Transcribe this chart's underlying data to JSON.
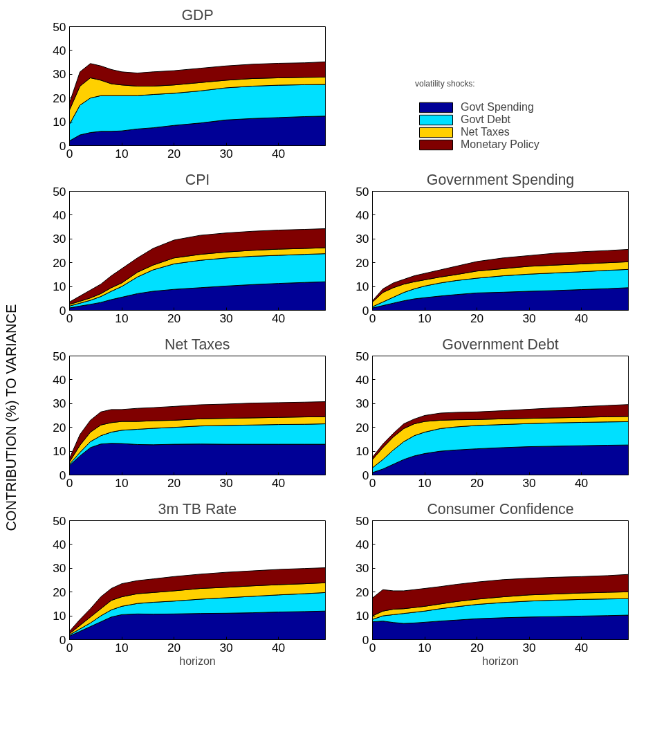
{
  "chart_data": [
    {
      "type": "area",
      "stacked": true,
      "title": "GDP",
      "legend": "right",
      "legend_title": "volatility shocks:",
      "x": [
        0,
        2,
        4,
        6,
        8,
        10,
        13,
        16,
        20,
        25,
        30,
        35,
        40,
        45,
        49
      ],
      "xlim": [
        0,
        49
      ],
      "xticks": [
        0,
        10,
        20,
        30,
        40
      ],
      "ylim": [
        0,
        50
      ],
      "yticks": [
        0,
        10,
        20,
        30,
        40,
        50
      ],
      "series": [
        {
          "name": "Govt Spending",
          "color": "#000096",
          "values": [
            2,
            4.5,
            5.5,
            6,
            6,
            6.2,
            7,
            7.5,
            8.5,
            9.5,
            10.8,
            11.4,
            11.8,
            12.2,
            12.4
          ]
        },
        {
          "name": "Govt Debt",
          "color": "#00e0ff",
          "values": [
            7,
            12.5,
            14.5,
            15,
            15,
            14.8,
            14,
            14,
            13.5,
            13.5,
            13.5,
            13.6,
            13.6,
            13.4,
            13.3
          ]
        },
        {
          "name": "Net Taxes",
          "color": "#ffd000",
          "values": [
            6,
            8,
            8.5,
            6.5,
            5,
            4.5,
            4,
            3.5,
            3.5,
            3.5,
            3.2,
            3.2,
            3.1,
            3.1,
            3.1
          ]
        },
        {
          "name": "Monetary Policy",
          "color": "#800000",
          "values": [
            3,
            6,
            6,
            6,
            6,
            5.5,
            5.5,
            6,
            6,
            6,
            6,
            6,
            6.1,
            6.1,
            6.4
          ]
        }
      ]
    },
    {
      "type": "area",
      "stacked": true,
      "title": "CPI",
      "x": [
        0,
        2,
        4,
        6,
        8,
        10,
        13,
        16,
        20,
        25,
        30,
        35,
        40,
        45,
        49
      ],
      "xlim": [
        0,
        49
      ],
      "xticks": [
        0,
        10,
        20,
        30,
        40
      ],
      "ylim": [
        0,
        50
      ],
      "yticks": [
        0,
        10,
        20,
        30,
        40,
        50
      ],
      "series": [
        {
          "color": "#000096",
          "values": [
            1,
            1.8,
            2.5,
            3.3,
            4.5,
            5.5,
            7,
            8,
            8.8,
            9.5,
            10.2,
            10.8,
            11.3,
            11.7,
            12
          ]
        },
        {
          "color": "#00e0ff",
          "values": [
            0.8,
            1.2,
            1.7,
            2.5,
            3.5,
            4.5,
            7,
            9,
            10.7,
            11.5,
            11.8,
            11.9,
            11.8,
            11.8,
            11.8
          ]
        },
        {
          "color": "#ffd000",
          "values": [
            0.7,
            0.8,
            1,
            1.2,
            1.5,
            1.5,
            2,
            2,
            2.5,
            2.5,
            2.5,
            2.5,
            2.6,
            2.5,
            2.5
          ]
        },
        {
          "color": "#800000",
          "values": [
            1,
            2.2,
            3.3,
            4,
            5,
            6,
            6,
            7,
            7.5,
            8,
            8,
            8,
            8,
            8,
            8
          ]
        }
      ]
    },
    {
      "type": "area",
      "stacked": true,
      "title": "Government Spending",
      "x": [
        0,
        2,
        4,
        6,
        8,
        10,
        13,
        16,
        20,
        25,
        30,
        35,
        40,
        45,
        49
      ],
      "xlim": [
        0,
        49
      ],
      "xticks": [
        0,
        10,
        20,
        30,
        40
      ],
      "ylim": [
        0,
        50
      ],
      "yticks": [
        0,
        10,
        20,
        30,
        40,
        50
      ],
      "series": [
        {
          "color": "#000096",
          "values": [
            1,
            2,
            3,
            4,
            4.8,
            5.3,
            6,
            6.6,
            7.3,
            7.6,
            8,
            8.3,
            8.7,
            9.1,
            9.5
          ]
        },
        {
          "color": "#00e0ff",
          "values": [
            0.5,
            1.5,
            2.5,
            3.5,
            4.2,
            4.9,
            5.5,
            5.9,
            6.2,
            6.9,
            7.2,
            7.4,
            7.5,
            7.7,
            7.7
          ]
        },
        {
          "color": "#ffd000",
          "values": [
            2,
            4,
            4,
            3.5,
            3,
            2.6,
            2.5,
            2.5,
            3,
            3,
            3.3,
            3.3,
            3.3,
            3.2,
            3.2
          ]
        },
        {
          "color": "#800000",
          "values": [
            0.5,
            1.5,
            2,
            2,
            2.5,
            2.7,
            3,
            3.5,
            4,
            4.5,
            4.5,
            5,
            5.1,
            5.1,
            5.2
          ]
        }
      ]
    },
    {
      "type": "area",
      "stacked": true,
      "title": "Net Taxes",
      "ylabel": "CONTRIBUTION (%) TO VARIANCE",
      "x": [
        0,
        2,
        4,
        6,
        8,
        10,
        13,
        16,
        20,
        25,
        30,
        35,
        40,
        45,
        49
      ],
      "xlim": [
        0,
        49
      ],
      "xticks": [
        0,
        10,
        20,
        30,
        40
      ],
      "ylim": [
        0,
        50
      ],
      "yticks": [
        0,
        10,
        20,
        30,
        40,
        50
      ],
      "series": [
        {
          "color": "#000096",
          "values": [
            4,
            8,
            11.5,
            13,
            13.3,
            13.2,
            12.8,
            12.7,
            12.9,
            13,
            12.9,
            12.9,
            12.9,
            12.9,
            12.9
          ]
        },
        {
          "color": "#00e0ff",
          "values": [
            0.5,
            1.5,
            2.5,
            3.5,
            4.7,
            5.6,
            6.4,
            6.9,
            7.1,
            7.6,
            7.9,
            8.1,
            8.3,
            8.4,
            8.6
          ]
        },
        {
          "color": "#ffd000",
          "values": [
            1,
            3,
            4,
            4.5,
            4,
            3.7,
            3.3,
            3.2,
            3,
            3,
            3,
            3,
            3,
            3.1,
            3
          ]
        },
        {
          "color": "#800000",
          "values": [
            1.5,
            4.5,
            5,
            5.5,
            5.5,
            5,
            5.5,
            5.5,
            5.8,
            5.9,
            6,
            6.2,
            6.2,
            6.2,
            6.3
          ]
        }
      ]
    },
    {
      "type": "area",
      "stacked": true,
      "title": "Government Debt",
      "x": [
        0,
        2,
        4,
        6,
        8,
        10,
        13,
        16,
        20,
        25,
        30,
        35,
        40,
        45,
        49
      ],
      "xlim": [
        0,
        49
      ],
      "xticks": [
        0,
        10,
        20,
        30,
        40
      ],
      "ylim": [
        0,
        50
      ],
      "yticks": [
        0,
        10,
        20,
        30,
        40,
        50
      ],
      "series": [
        {
          "color": "#000096",
          "values": [
            1,
            2.5,
            4.5,
            6.5,
            8,
            9,
            10,
            10.5,
            11,
            11.5,
            11.9,
            12.1,
            12.3,
            12.5,
            12.6
          ]
        },
        {
          "color": "#00e0ff",
          "values": [
            2,
            4,
            6,
            7.5,
            8.5,
            9,
            9.5,
            9.7,
            9.8,
            9.7,
            9.7,
            9.8,
            9.8,
            9.8,
            9.8
          ]
        },
        {
          "color": "#ffd000",
          "values": [
            3.5,
            5,
            5.5,
            5.5,
            5,
            4.5,
            3.5,
            3,
            2.5,
            2.4,
            2.2,
            2.1,
            2.1,
            2.2,
            2.2
          ]
        },
        {
          "color": "#800000",
          "values": [
            1,
            1.5,
            1.5,
            2,
            2,
            2.5,
            3,
            3.1,
            3.2,
            3.4,
            3.8,
            4.2,
            4.5,
            4.7,
            5
          ]
        }
      ]
    },
    {
      "type": "area",
      "stacked": true,
      "title": "3m TB Rate",
      "xlabel": "horizon",
      "x": [
        0,
        2,
        4,
        6,
        8,
        10,
        13,
        16,
        20,
        25,
        30,
        35,
        40,
        45,
        49
      ],
      "xlim": [
        0,
        49
      ],
      "xticks": [
        0,
        10,
        20,
        30,
        40
      ],
      "ylim": [
        0,
        50
      ],
      "yticks": [
        0,
        10,
        20,
        30,
        40,
        50
      ],
      "series": [
        {
          "color": "#000096",
          "values": [
            1.5,
            3.5,
            5.5,
            7.5,
            9.5,
            10.5,
            10.8,
            10.7,
            10.8,
            11,
            11.1,
            11.3,
            11.6,
            11.8,
            12
          ]
        },
        {
          "color": "#00e0ff",
          "values": [
            0.5,
            1,
            1.5,
            2.5,
            3,
            3.5,
            4.4,
            5,
            5.4,
            6,
            6.5,
            6.9,
            7.2,
            7.5,
            7.8
          ]
        },
        {
          "color": "#ffd000",
          "values": [
            0.5,
            1.5,
            2.5,
            3,
            4,
            4,
            4.1,
            4.1,
            4.3,
            4.5,
            4.4,
            4.4,
            4.3,
            4.2,
            4.1
          ]
        },
        {
          "color": "#800000",
          "values": [
            1,
            2.5,
            3.5,
            5,
            5,
            5.5,
            5.5,
            5.7,
            6,
            6,
            6.3,
            6.3,
            6.4,
            6.4,
            6.3
          ]
        }
      ]
    },
    {
      "type": "area",
      "stacked": true,
      "title": "Consumer Confidence",
      "xlabel": "horizon",
      "x": [
        0,
        2,
        4,
        6,
        8,
        10,
        13,
        16,
        20,
        25,
        30,
        35,
        40,
        45,
        49
      ],
      "xlim": [
        0,
        49
      ],
      "xticks": [
        0,
        10,
        20,
        30,
        40
      ],
      "ylim": [
        0,
        50
      ],
      "yticks": [
        0,
        10,
        20,
        30,
        40,
        50
      ],
      "series": [
        {
          "color": "#000096",
          "values": [
            7.5,
            7.8,
            7.2,
            6.8,
            7,
            7.3,
            7.8,
            8.2,
            8.8,
            9.2,
            9.5,
            9.7,
            9.9,
            10.1,
            10.3
          ]
        },
        {
          "color": "#00e0ff",
          "values": [
            1,
            2.2,
            3.3,
            4.2,
            4.5,
            4.7,
            5.2,
            5.6,
            6,
            6.4,
            6.7,
            6.9,
            7,
            7,
            6.9
          ]
        },
        {
          "color": "#ffd000",
          "values": [
            1.5,
            2,
            2.3,
            2,
            2,
            2,
            2,
            2.2,
            2.2,
            2.4,
            2.6,
            2.6,
            2.7,
            2.8,
            2.9
          ]
        },
        {
          "color": "#800000",
          "values": [
            7.5,
            9,
            7.7,
            7.5,
            7.5,
            7.5,
            7.3,
            7.2,
            7.2,
            7.2,
            7,
            7,
            6.9,
            7,
            7.3
          ]
        }
      ]
    }
  ]
}
